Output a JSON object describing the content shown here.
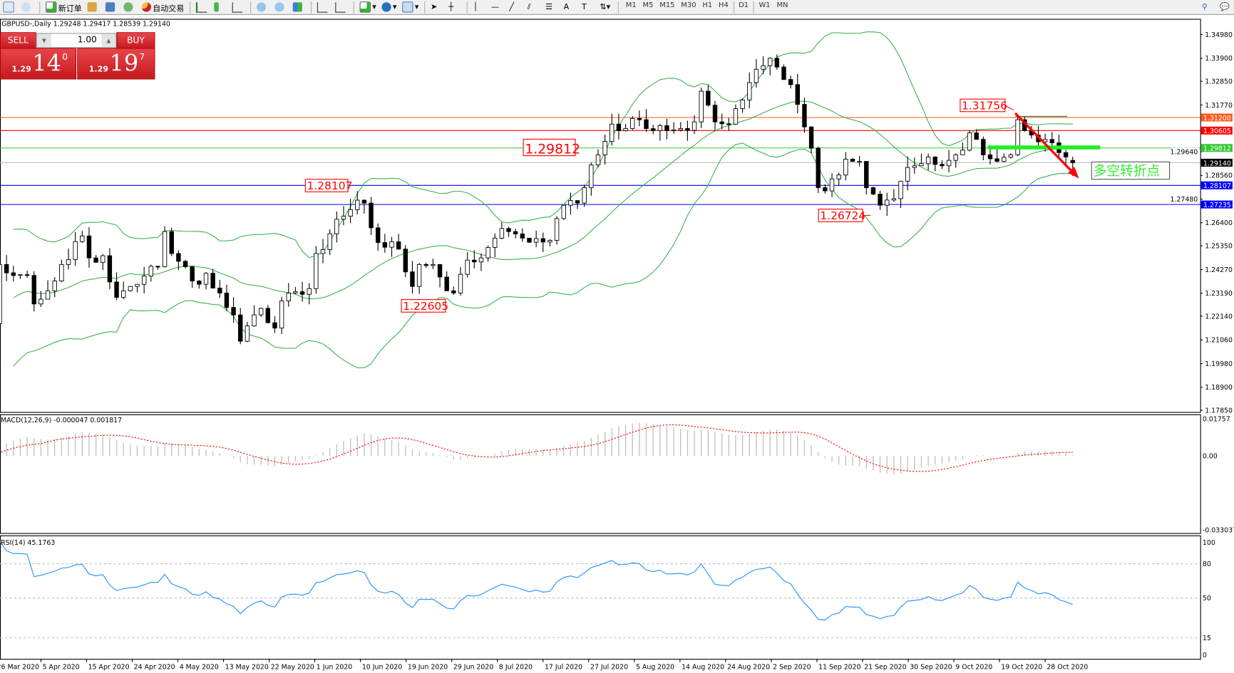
{
  "toolbar": {
    "new_order": "新订单",
    "auto_trading": "自动交易",
    "timeframes": [
      "M1",
      "M5",
      "M15",
      "M30",
      "H1",
      "H4",
      "D1",
      "W1",
      "MN"
    ]
  },
  "one_click": {
    "sell_label": "SELL",
    "buy_label": "BUY",
    "lot": "1.00",
    "sell_price": {
      "small": "1.29",
      "big": "14",
      "point": "0"
    },
    "buy_price": {
      "small": "1.29",
      "big": "19",
      "point": "7"
    }
  },
  "chart_header": "GBPUSD-,Daily  1.29248 1.29417 1.28539 1.29140",
  "macd_header": "MACD(12,26,9) -0.000047 0.001817",
  "rsi_header": "RSI(14) 45.1763",
  "chart_data": {
    "type": "candlestick",
    "symbol": "GBPUSD-",
    "timeframe": "Daily",
    "ohlc": {
      "open": 1.29248,
      "high": 1.29417,
      "low": 1.28539,
      "close": 1.2914
    },
    "price_axis_ticks": [
      "1.34980",
      "1.33900",
      "1.32850",
      "1.31770",
      "1.29640",
      "1.28560",
      "1.27480",
      "1.26400",
      "1.25350",
      "1.24270",
      "1.23190",
      "1.22140",
      "1.21060",
      "1.19980",
      "1.18900",
      "1.17850"
    ],
    "price_range": [
      1.1785,
      1.3498
    ],
    "date_ticks": [
      "26 Mar 2020",
      "5 Apr 2020",
      "15 Apr 2020",
      "24 Apr 2020",
      "4 May 2020",
      "13 May 2020",
      "22 May 2020",
      "1 Jun 2020",
      "10 Jun 2020",
      "19 Jun 2020",
      "29 Jun 2020",
      "8 Jul 2020",
      "17 Jul 2020",
      "27 Jul 2020",
      "5 Aug 2020",
      "14 Aug 2020",
      "24 Aug 2020",
      "2 Sep 2020",
      "11 Sep 2020",
      "21 Sep 2020",
      "30 Sep 2020",
      "9 Oct 2020",
      "19 Oct 2020",
      "28 Oct 2020"
    ],
    "levels": [
      {
        "label": "1.31200",
        "price": 1.312,
        "color": "#ff5a1f"
      },
      {
        "label": "1.30605",
        "price": 1.30605,
        "color": "#ff0000"
      },
      {
        "label": "1.29812",
        "price": 1.29812,
        "color": "#32c832"
      },
      {
        "label": "1.29140",
        "price": 1.2914,
        "color": "#000000",
        "line": "#c0c0c0"
      },
      {
        "label": "1.28107",
        "price": 1.28107,
        "color": "#0000ff"
      },
      {
        "label": "1.27235",
        "price": 1.27235,
        "color": "#0000ff"
      }
    ],
    "annotations": [
      "1.31756",
      "1.29812",
      "1.28107",
      "1.22605",
      "1.26724"
    ],
    "note_text": "多空转折点",
    "closes_approx": [
      [
        "2020-03-25",
        1.205
      ],
      [
        "2020-03-26",
        1.218
      ],
      [
        "2020-03-27",
        1.245
      ],
      [
        "2020-03-31",
        1.24
      ],
      [
        "2020-04-02",
        1.24
      ],
      [
        "2020-04-03",
        1.227
      ],
      [
        "2020-04-07",
        1.233
      ],
      [
        "2020-04-09",
        1.245
      ],
      [
        "2020-04-14",
        1.258
      ],
      [
        "2020-04-15",
        1.248
      ],
      [
        "2020-04-17",
        1.249
      ],
      [
        "2020-04-21",
        1.23
      ],
      [
        "2020-04-23",
        1.235
      ],
      [
        "2020-04-29",
        1.244
      ],
      [
        "2020-04-30",
        1.26
      ],
      [
        "2020-05-01",
        1.25
      ],
      [
        "2020-05-05",
        1.244
      ],
      [
        "2020-05-07",
        1.236
      ],
      [
        "2020-05-08",
        1.241
      ],
      [
        "2020-05-12",
        1.232
      ],
      [
        "2020-05-14",
        1.222
      ],
      [
        "2020-05-15",
        1.21
      ],
      [
        "2020-05-18",
        1.217
      ],
      [
        "2020-05-20",
        1.225
      ],
      [
        "2020-05-22",
        1.216
      ],
      [
        "2020-05-26",
        1.232
      ],
      [
        "2020-05-29",
        1.234
      ],
      [
        "2020-06-01",
        1.25
      ],
      [
        "2020-06-03",
        1.259
      ],
      [
        "2020-06-05",
        1.267
      ],
      [
        "2020-06-08",
        1.27
      ],
      [
        "2020-06-10",
        1.273
      ],
      [
        "2020-06-12",
        1.255
      ],
      [
        "2020-06-17",
        1.252
      ],
      [
        "2020-06-19",
        1.235
      ],
      [
        "2020-06-22",
        1.245
      ],
      [
        "2020-06-24",
        1.245
      ],
      [
        "2020-06-26",
        1.233
      ],
      [
        "2020-06-29",
        1.232
      ],
      [
        "2020-07-01",
        1.247
      ],
      [
        "2020-07-03",
        1.248
      ],
      [
        "2020-07-07",
        1.257
      ],
      [
        "2020-07-09",
        1.26
      ],
      [
        "2020-07-13",
        1.257
      ],
      [
        "2020-07-17",
        1.256
      ],
      [
        "2020-07-21",
        1.272
      ],
      [
        "2020-07-23",
        1.273
      ],
      [
        "2020-07-24",
        1.28
      ],
      [
        "2020-07-28",
        1.295
      ],
      [
        "2020-07-30",
        1.309
      ],
      [
        "2020-08-03",
        1.307
      ],
      [
        "2020-08-05",
        1.311
      ],
      [
        "2020-08-07",
        1.306
      ],
      [
        "2020-08-11",
        1.306
      ],
      [
        "2020-08-13",
        1.307
      ],
      [
        "2020-08-17",
        1.31
      ],
      [
        "2020-08-18",
        1.324
      ],
      [
        "2020-08-20",
        1.31
      ],
      [
        "2020-08-24",
        1.309
      ],
      [
        "2020-08-26",
        1.32
      ],
      [
        "2020-08-28",
        1.334
      ],
      [
        "2020-09-01",
        1.339
      ],
      [
        "2020-09-02",
        1.335
      ],
      [
        "2020-09-04",
        1.327
      ],
      [
        "2020-09-07",
        1.318
      ],
      [
        "2020-09-09",
        1.298
      ],
      [
        "2020-09-10",
        1.28
      ],
      [
        "2020-09-14",
        1.284
      ],
      [
        "2020-09-16",
        1.293
      ],
      [
        "2020-09-18",
        1.292
      ],
      [
        "2020-09-21",
        1.28
      ],
      [
        "2020-09-23",
        1.272
      ],
      [
        "2020-09-25",
        1.275
      ],
      [
        "2020-09-28",
        1.283
      ],
      [
        "2020-09-30",
        1.29
      ],
      [
        "2020-10-02",
        1.294
      ],
      [
        "2020-10-06",
        1.29
      ],
      [
        "2020-10-08",
        1.295
      ],
      [
        "2020-10-12",
        1.305
      ],
      [
        "2020-10-14",
        1.295
      ],
      [
        "2020-10-16",
        1.292
      ],
      [
        "2020-10-20",
        1.295
      ],
      [
        "2020-10-21",
        1.311
      ],
      [
        "2020-10-23",
        1.304
      ],
      [
        "2020-10-27",
        1.302
      ],
      [
        "2020-10-29",
        1.296
      ],
      [
        "2020-10-30",
        1.294
      ],
      [
        "2020-11-02",
        1.2914
      ]
    ],
    "indicators": {
      "bollinger": {
        "period": 20,
        "deviations": 2,
        "color": "#3cb44b"
      },
      "macd": {
        "params": [
          12,
          26,
          9
        ],
        "axis": [
          "0.01757",
          "0.00",
          "-0.033037"
        ],
        "histogram_color": "#c0c0c0",
        "signal_color": "#ff0000"
      },
      "rsi": {
        "period": 14,
        "axis": [
          "100",
          "80",
          "50",
          "15",
          "0"
        ],
        "color": "#1e90ff"
      }
    }
  }
}
